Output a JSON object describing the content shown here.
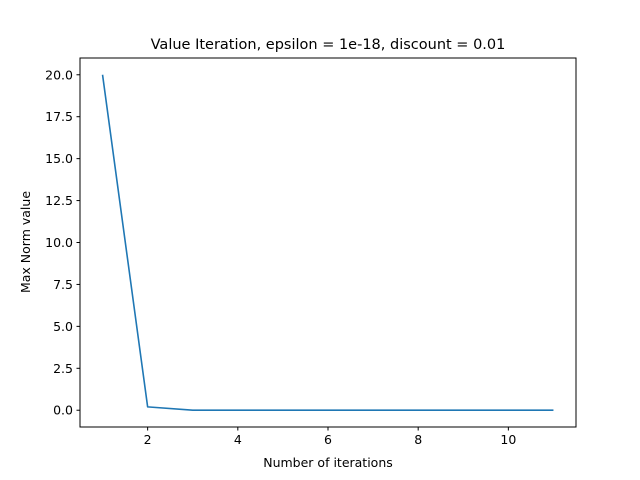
{
  "chart_data": {
    "type": "line",
    "title": "Value Iteration, epsilon = 1e-18, discount = 0.01",
    "xlabel": "Number of iterations",
    "ylabel": "Max Norm value",
    "xlim": [
      0.5,
      11.5
    ],
    "ylim": [
      -1.0,
      21.0
    ],
    "xticks": [
      2,
      4,
      6,
      8,
      10
    ],
    "xtick_labels": [
      "2",
      "4",
      "6",
      "8",
      "10"
    ],
    "yticks": [
      0,
      2.5,
      5,
      7.5,
      10,
      12.5,
      15,
      17.5,
      20
    ],
    "ytick_labels": [
      "0.0",
      "2.5",
      "5.0",
      "7.5",
      "10.0",
      "12.5",
      "15.0",
      "17.5",
      "20.0"
    ],
    "grid": false,
    "series": [
      {
        "color": "#1f77b4",
        "x": [
          1,
          2,
          3,
          4,
          5,
          6,
          7,
          8,
          9,
          10,
          11
        ],
        "y": [
          20.0,
          0.2,
          0.002,
          2e-05,
          0.0,
          0.0,
          0.0,
          0.0,
          0.0,
          0.0,
          0.0
        ]
      }
    ]
  }
}
